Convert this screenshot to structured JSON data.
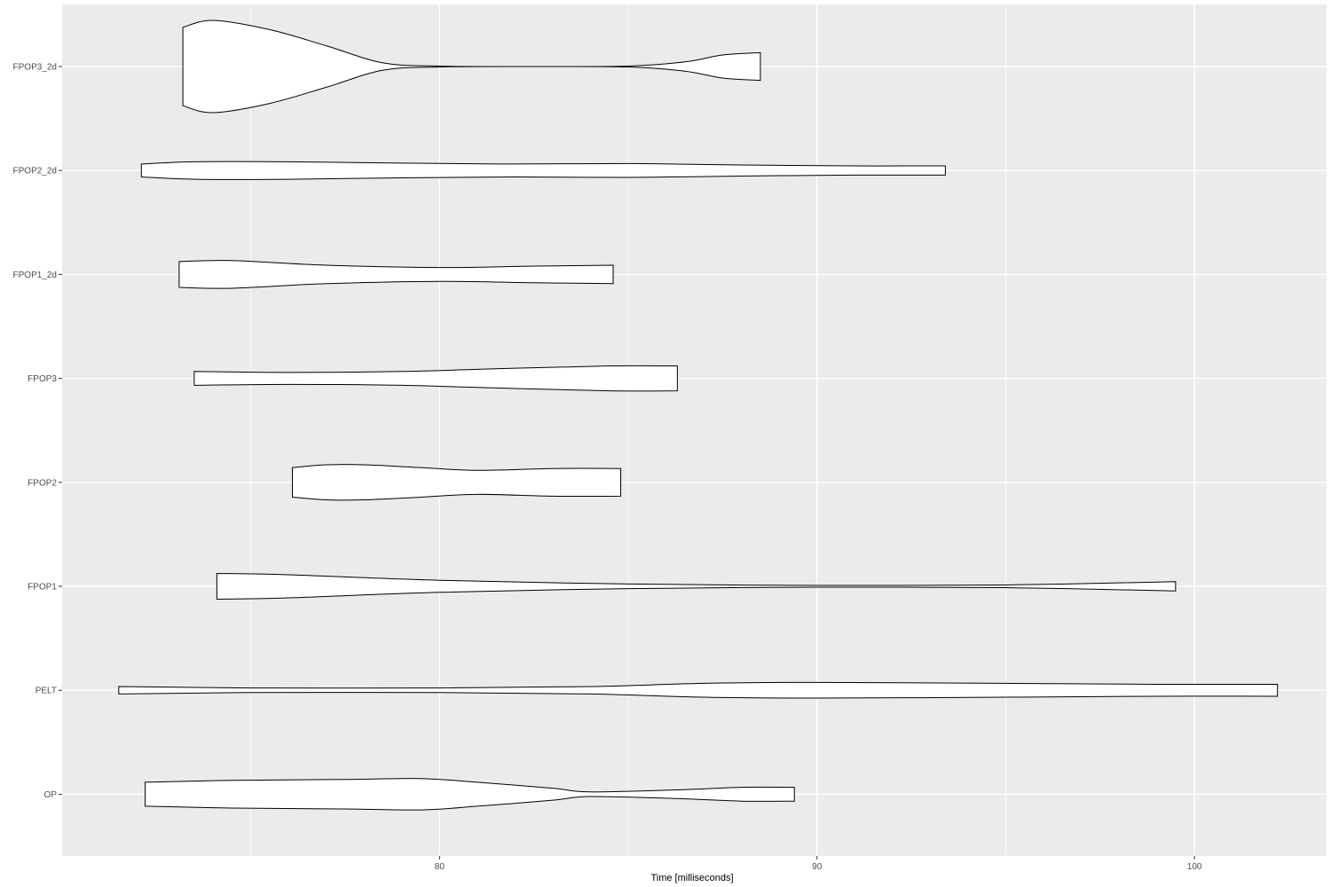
{
  "chart_data": {
    "type": "violin",
    "orientation": "horizontal",
    "title": "",
    "xlabel": "Time [milliseconds]",
    "ylabel": "",
    "xlim": [
      70,
      103.5
    ],
    "x_ticks": [
      80,
      90,
      100
    ],
    "grid": true,
    "legend": "none",
    "colors": {
      "panel_background": "#ebebeb",
      "grid_major": "#ffffff",
      "violin_fill": "#ffffff",
      "violin_stroke": "#000000",
      "tick_label": "#4d4d4d",
      "axis_title": "#000000"
    },
    "categories": [
      "FPOP3_2d",
      "FPOP2_2d",
      "FPOP1_2d",
      "FPOP3",
      "FPOP2",
      "FPOP1",
      "PELT",
      "OP"
    ],
    "series": [
      {
        "category": "FPOP3_2d",
        "min": 73.2,
        "max": 88.5,
        "density": [
          [
            73.2,
            0.85
          ],
          [
            74.0,
            1.0
          ],
          [
            75.5,
            0.8
          ],
          [
            77.0,
            0.45
          ],
          [
            78.5,
            0.08
          ],
          [
            80.0,
            0.01
          ],
          [
            82.5,
            0.0
          ],
          [
            85.0,
            0.01
          ],
          [
            86.5,
            0.1
          ],
          [
            87.5,
            0.25
          ],
          [
            88.5,
            0.3
          ]
        ]
      },
      {
        "category": "FPOP2_2d",
        "min": 72.1,
        "max": 93.4,
        "density": [
          [
            72.1,
            0.14
          ],
          [
            73.5,
            0.19
          ],
          [
            76.0,
            0.19
          ],
          [
            79.0,
            0.16
          ],
          [
            82.0,
            0.14
          ],
          [
            85.0,
            0.15
          ],
          [
            88.0,
            0.12
          ],
          [
            91.0,
            0.1
          ],
          [
            93.4,
            0.1
          ]
        ]
      },
      {
        "category": "FPOP1_2d",
        "min": 73.1,
        "max": 84.6,
        "density": [
          [
            73.1,
            0.28
          ],
          [
            74.5,
            0.3
          ],
          [
            77.0,
            0.2
          ],
          [
            80.0,
            0.15
          ],
          [
            82.5,
            0.18
          ],
          [
            84.6,
            0.2
          ]
        ]
      },
      {
        "category": "FPOP3",
        "min": 73.5,
        "max": 86.3,
        "density": [
          [
            73.5,
            0.15
          ],
          [
            76.0,
            0.13
          ],
          [
            79.0,
            0.15
          ],
          [
            82.0,
            0.22
          ],
          [
            84.5,
            0.27
          ],
          [
            86.3,
            0.27
          ]
        ]
      },
      {
        "category": "FPOP2",
        "min": 76.1,
        "max": 84.8,
        "density": [
          [
            76.1,
            0.32
          ],
          [
            77.0,
            0.38
          ],
          [
            78.0,
            0.38
          ],
          [
            79.5,
            0.32
          ],
          [
            81.0,
            0.26
          ],
          [
            83.0,
            0.3
          ],
          [
            84.8,
            0.3
          ]
        ]
      },
      {
        "category": "FPOP1",
        "min": 74.1,
        "max": 99.5,
        "density": [
          [
            74.1,
            0.28
          ],
          [
            76.0,
            0.25
          ],
          [
            80.0,
            0.13
          ],
          [
            85.0,
            0.05
          ],
          [
            90.0,
            0.02
          ],
          [
            95.0,
            0.03
          ],
          [
            99.5,
            0.1
          ]
        ]
      },
      {
        "category": "PELT",
        "min": 71.5,
        "max": 102.2,
        "density": [
          [
            71.5,
            0.08
          ],
          [
            75.0,
            0.05
          ],
          [
            80.0,
            0.05
          ],
          [
            84.0,
            0.08
          ],
          [
            87.0,
            0.15
          ],
          [
            90.0,
            0.17
          ],
          [
            95.0,
            0.15
          ],
          [
            99.0,
            0.13
          ],
          [
            102.2,
            0.13
          ]
        ]
      },
      {
        "category": "OP",
        "min": 72.2,
        "max": 89.4,
        "density": [
          [
            72.2,
            0.26
          ],
          [
            74.5,
            0.3
          ],
          [
            77.5,
            0.32
          ],
          [
            79.5,
            0.34
          ],
          [
            81.0,
            0.26
          ],
          [
            83.0,
            0.13
          ],
          [
            84.0,
            0.05
          ],
          [
            86.5,
            0.1
          ],
          [
            88.0,
            0.15
          ],
          [
            89.4,
            0.15
          ]
        ]
      }
    ]
  }
}
